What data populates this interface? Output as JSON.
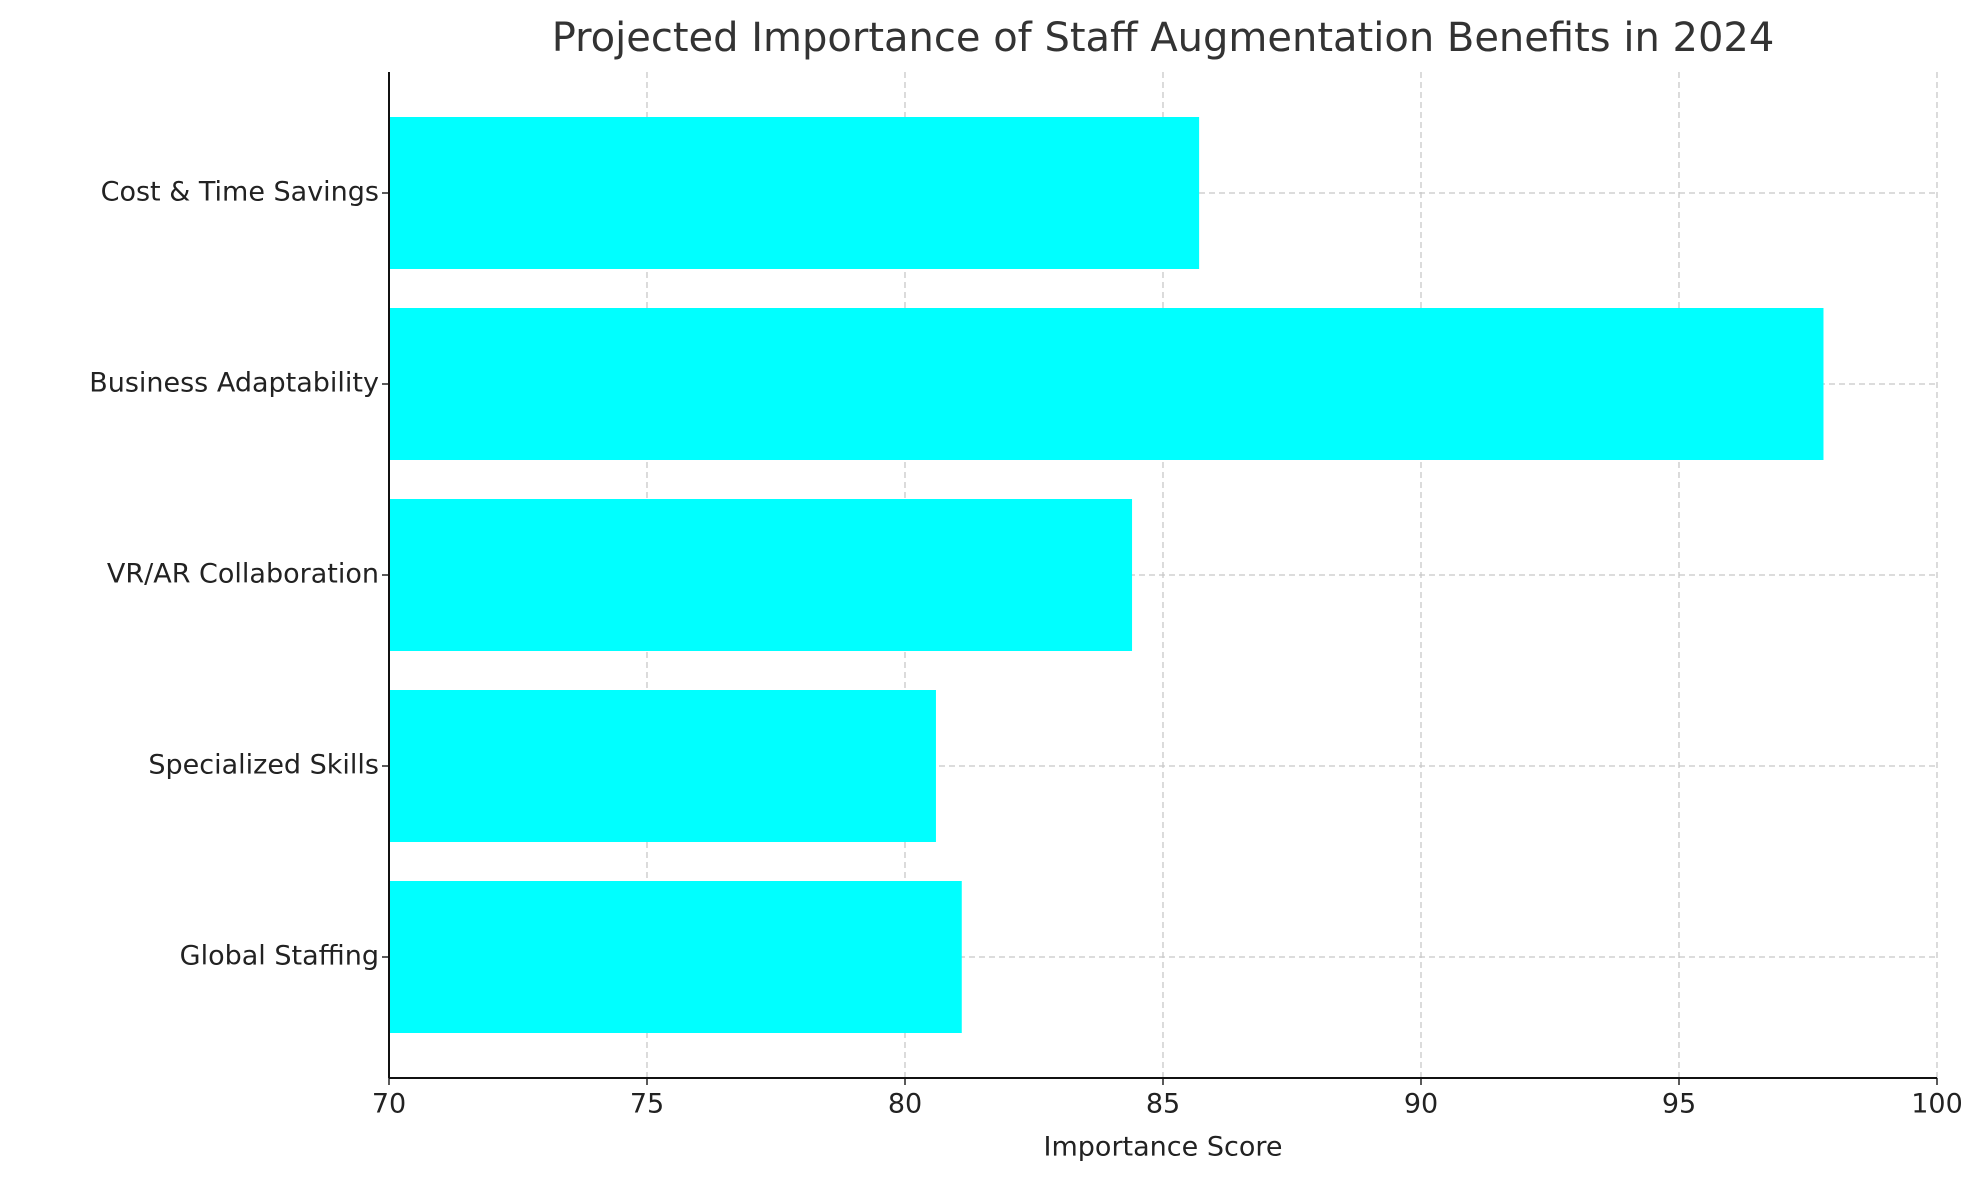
{
  "chart_data": {
    "type": "barh",
    "title": "Projected Importance of Staff Augmentation Benefits in 2024",
    "xlabel": "Importance Score",
    "categories": [
      "Cost & Time Savings",
      "Business Adaptability",
      "VR/AR Collaboration",
      "Specialized Skills",
      "Global Staffing"
    ],
    "values": [
      85.7,
      97.8,
      84.4,
      80.6,
      81.1
    ],
    "color": "#00ffff",
    "xlim": [
      70,
      100
    ],
    "xticks": [
      70,
      75,
      80,
      85,
      90,
      95,
      100
    ],
    "grid": true
  }
}
